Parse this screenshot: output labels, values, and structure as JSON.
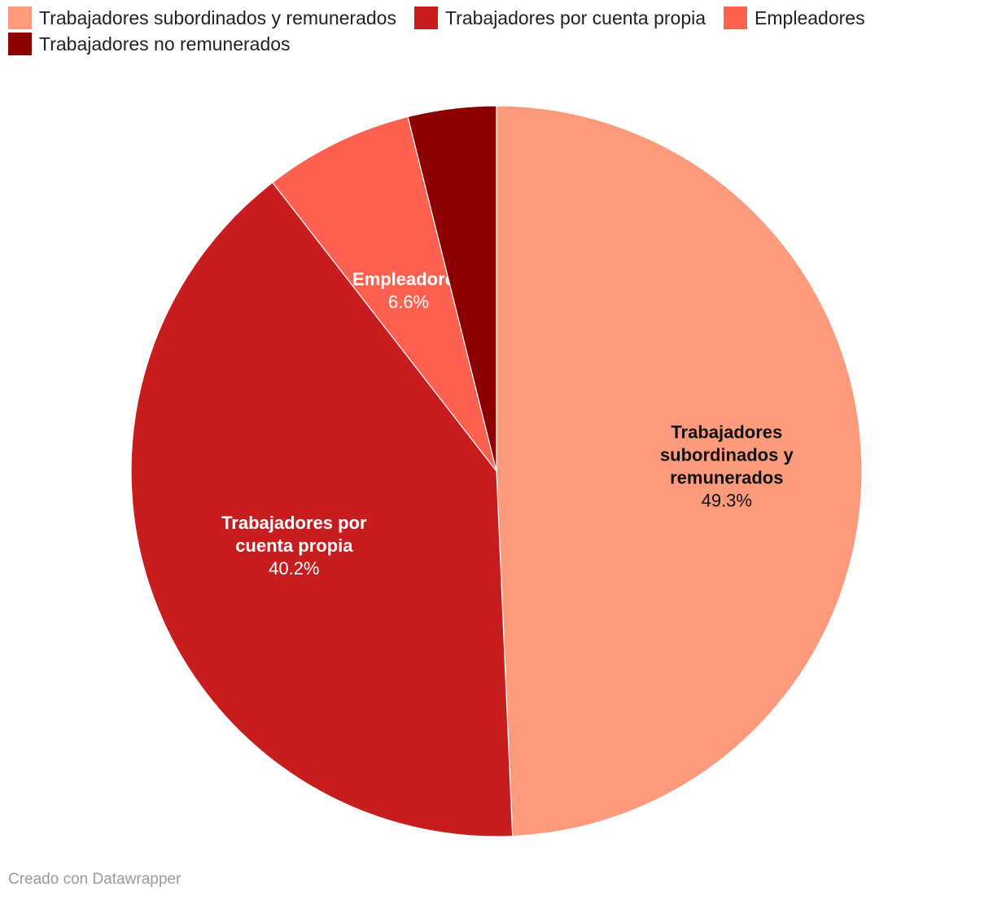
{
  "chart_data": {
    "type": "pie",
    "slices": [
      {
        "name": "Trabajadores subordinados y remunerados",
        "label_lines": [
          "Trabajadores",
          "subordinados y",
          "remunerados"
        ],
        "value": 49.3,
        "value_label": "49.3%",
        "color": "#fd9a7b",
        "label_color": "#111111"
      },
      {
        "name": "Trabajadores por cuenta propia",
        "label_lines": [
          "Trabajadores por",
          "cuenta propia"
        ],
        "value": 40.2,
        "value_label": "40.2%",
        "color": "#c81d1f",
        "label_color": "#ffffff"
      },
      {
        "name": "Empleadores",
        "label_lines": [
          "Empleadores"
        ],
        "value": 6.6,
        "value_label": "6.6%",
        "color": "#fe6150",
        "label_color": "#ffffff"
      },
      {
        "name": "Trabajadores no remunerados",
        "label_lines": [],
        "value": 3.9,
        "value_label": "",
        "color": "#8b0000",
        "label_color": "#ffffff"
      }
    ]
  },
  "footer": {
    "credit": "Creado con Datawrapper"
  }
}
